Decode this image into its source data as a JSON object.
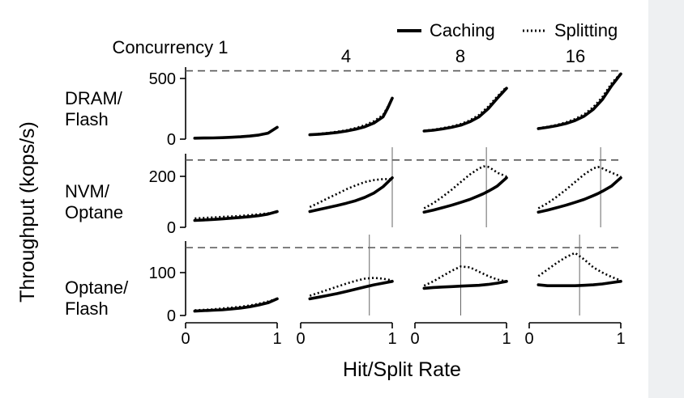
{
  "chart_data": {
    "type": "line",
    "legend": {
      "position": "top-right",
      "entries": [
        {
          "name": "Caching",
          "style": "solid"
        },
        {
          "name": "Splitting",
          "style": "dotted"
        }
      ]
    },
    "xlabel": "Hit/Split Rate",
    "ylabel": "Throughput (kops/s)",
    "x_ticks": [
      "0",
      "1"
    ],
    "columns": [
      {
        "title": "Concurrency 1"
      },
      {
        "title": "4"
      },
      {
        "title": "8"
      },
      {
        "title": "16"
      }
    ],
    "rows": [
      {
        "label_lines": [
          "DRAM/",
          "Flash"
        ],
        "ylim": [
          0,
          580
        ],
        "y_ticks": [
          0,
          500
        ],
        "ceiling": 550,
        "panels": [
          {
            "x": [
              0.1,
              0.2,
              0.3,
              0.4,
              0.5,
              0.6,
              0.7,
              0.8,
              0.9,
              1.0
            ],
            "caching": [
              8,
              9,
              10,
              12,
              15,
              19,
              25,
              33,
              48,
              95
            ],
            "splitting": [
              8,
              9,
              10,
              12,
              15,
              19,
              25,
              33,
              48,
              95
            ],
            "crossover": null
          },
          {
            "x": [
              0.1,
              0.2,
              0.3,
              0.4,
              0.5,
              0.6,
              0.7,
              0.8,
              0.9,
              0.95,
              1.0
            ],
            "caching": [
              35,
              40,
              46,
              54,
              65,
              80,
              100,
              130,
              180,
              250,
              330
            ],
            "splitting": [
              37,
              43,
              50,
              60,
              72,
              90,
              112,
              145,
              195,
              260,
              330
            ],
            "crossover": null
          },
          {
            "x": [
              0.1,
              0.2,
              0.3,
              0.4,
              0.5,
              0.6,
              0.7,
              0.8,
              0.9,
              1.0
            ],
            "caching": [
              65,
              72,
              82,
              95,
              112,
              140,
              180,
              245,
              330,
              410
            ],
            "splitting": [
              68,
              76,
              88,
              102,
              122,
              152,
              195,
              262,
              345,
              420
            ],
            "crossover": null
          },
          {
            "x": [
              0.1,
              0.2,
              0.3,
              0.4,
              0.5,
              0.6,
              0.7,
              0.8,
              0.9,
              1.0
            ],
            "caching": [
              85,
              95,
              108,
              125,
              150,
              185,
              240,
              320,
              430,
              525
            ],
            "splitting": [
              88,
              100,
              115,
              135,
              162,
              200,
              258,
              340,
              450,
              530
            ],
            "crossover": null
          }
        ]
      },
      {
        "label_lines": [
          "NVM/",
          "Optane"
        ],
        "ylim": [
          0,
          290
        ],
        "y_ticks": [
          0,
          200
        ],
        "ceiling": 265,
        "panels": [
          {
            "x": [
              0.1,
              0.2,
              0.3,
              0.4,
              0.5,
              0.6,
              0.7,
              0.8,
              0.9,
              1.0
            ],
            "caching": [
              27,
              29,
              31,
              33,
              36,
              39,
              42,
              46,
              52,
              62
            ],
            "splitting": [
              35,
              37,
              39,
              41,
              43,
              45,
              48,
              51,
              55,
              60
            ],
            "crossover": null
          },
          {
            "x": [
              0.1,
              0.2,
              0.3,
              0.4,
              0.5,
              0.6,
              0.7,
              0.8,
              0.9,
              1.0
            ],
            "caching": [
              62,
              70,
              78,
              86,
              95,
              105,
              118,
              135,
              160,
              195
            ],
            "splitting": [
              80,
              97,
              115,
              132,
              150,
              165,
              178,
              186,
              190,
              190
            ],
            "crossover": 1.0
          },
          {
            "x": [
              0.1,
              0.2,
              0.3,
              0.4,
              0.5,
              0.6,
              0.7,
              0.75,
              0.8,
              0.85,
              0.9,
              1.0
            ],
            "caching": [
              60,
              68,
              77,
              87,
              98,
              110,
              125,
              133,
              142,
              152,
              163,
              195
            ],
            "splitting": [
              75,
              95,
              120,
              148,
              178,
              208,
              232,
              240,
              238,
              228,
              215,
              200
            ],
            "crossover": 0.78
          },
          {
            "x": [
              0.1,
              0.2,
              0.3,
              0.4,
              0.5,
              0.6,
              0.7,
              0.75,
              0.8,
              0.9,
              1.0
            ],
            "caching": [
              60,
              68,
              77,
              87,
              98,
              110,
              125,
              133,
              142,
              163,
              195
            ],
            "splitting": [
              75,
              95,
              120,
              148,
              178,
              208,
              232,
              238,
              232,
              215,
              200
            ],
            "crossover": 0.78
          }
        ]
      },
      {
        "label_lines": [
          "Optane/",
          "Flash"
        ],
        "ylim": [
          0,
          170
        ],
        "y_ticks": [
          0,
          100
        ],
        "ceiling": 155,
        "panels": [
          {
            "x": [
              0.1,
              0.2,
              0.3,
              0.4,
              0.5,
              0.6,
              0.7,
              0.8,
              0.9,
              1.0
            ],
            "caching": [
              10,
              11,
              12,
              13,
              15,
              17,
              20,
              24,
              29,
              38
            ],
            "splitting": [
              12,
              13,
              14,
              16,
              18,
              20,
              23,
              27,
              32,
              38
            ],
            "crossover": null
          },
          {
            "x": [
              0.1,
              0.2,
              0.3,
              0.4,
              0.5,
              0.6,
              0.7,
              0.8,
              0.9,
              1.0
            ],
            "caching": [
              38,
              42,
              46,
              50,
              55,
              60,
              65,
              70,
              74,
              78
            ],
            "splitting": [
              45,
              52,
              59,
              66,
              73,
              79,
              84,
              86,
              84,
              80
            ],
            "crossover": 0.75
          },
          {
            "x": [
              0.1,
              0.2,
              0.3,
              0.4,
              0.5,
              0.6,
              0.7,
              0.8,
              0.9,
              1.0
            ],
            "caching": [
              62,
              64,
              65,
              66,
              67,
              68,
              69,
              71,
              74,
              78
            ],
            "splitting": [
              68,
              78,
              90,
              102,
              112,
              110,
              100,
              90,
              82,
              78
            ],
            "crossover": 0.5
          },
          {
            "x": [
              0.1,
              0.2,
              0.3,
              0.4,
              0.5,
              0.6,
              0.7,
              0.8,
              0.9,
              1.0
            ],
            "caching": [
              70,
              68,
              68,
              68,
              68,
              69,
              70,
              72,
              75,
              78
            ],
            "splitting": [
              90,
              105,
              120,
              133,
              143,
              128,
              110,
              98,
              88,
              80
            ],
            "crossover": 0.55
          }
        ]
      }
    ]
  }
}
